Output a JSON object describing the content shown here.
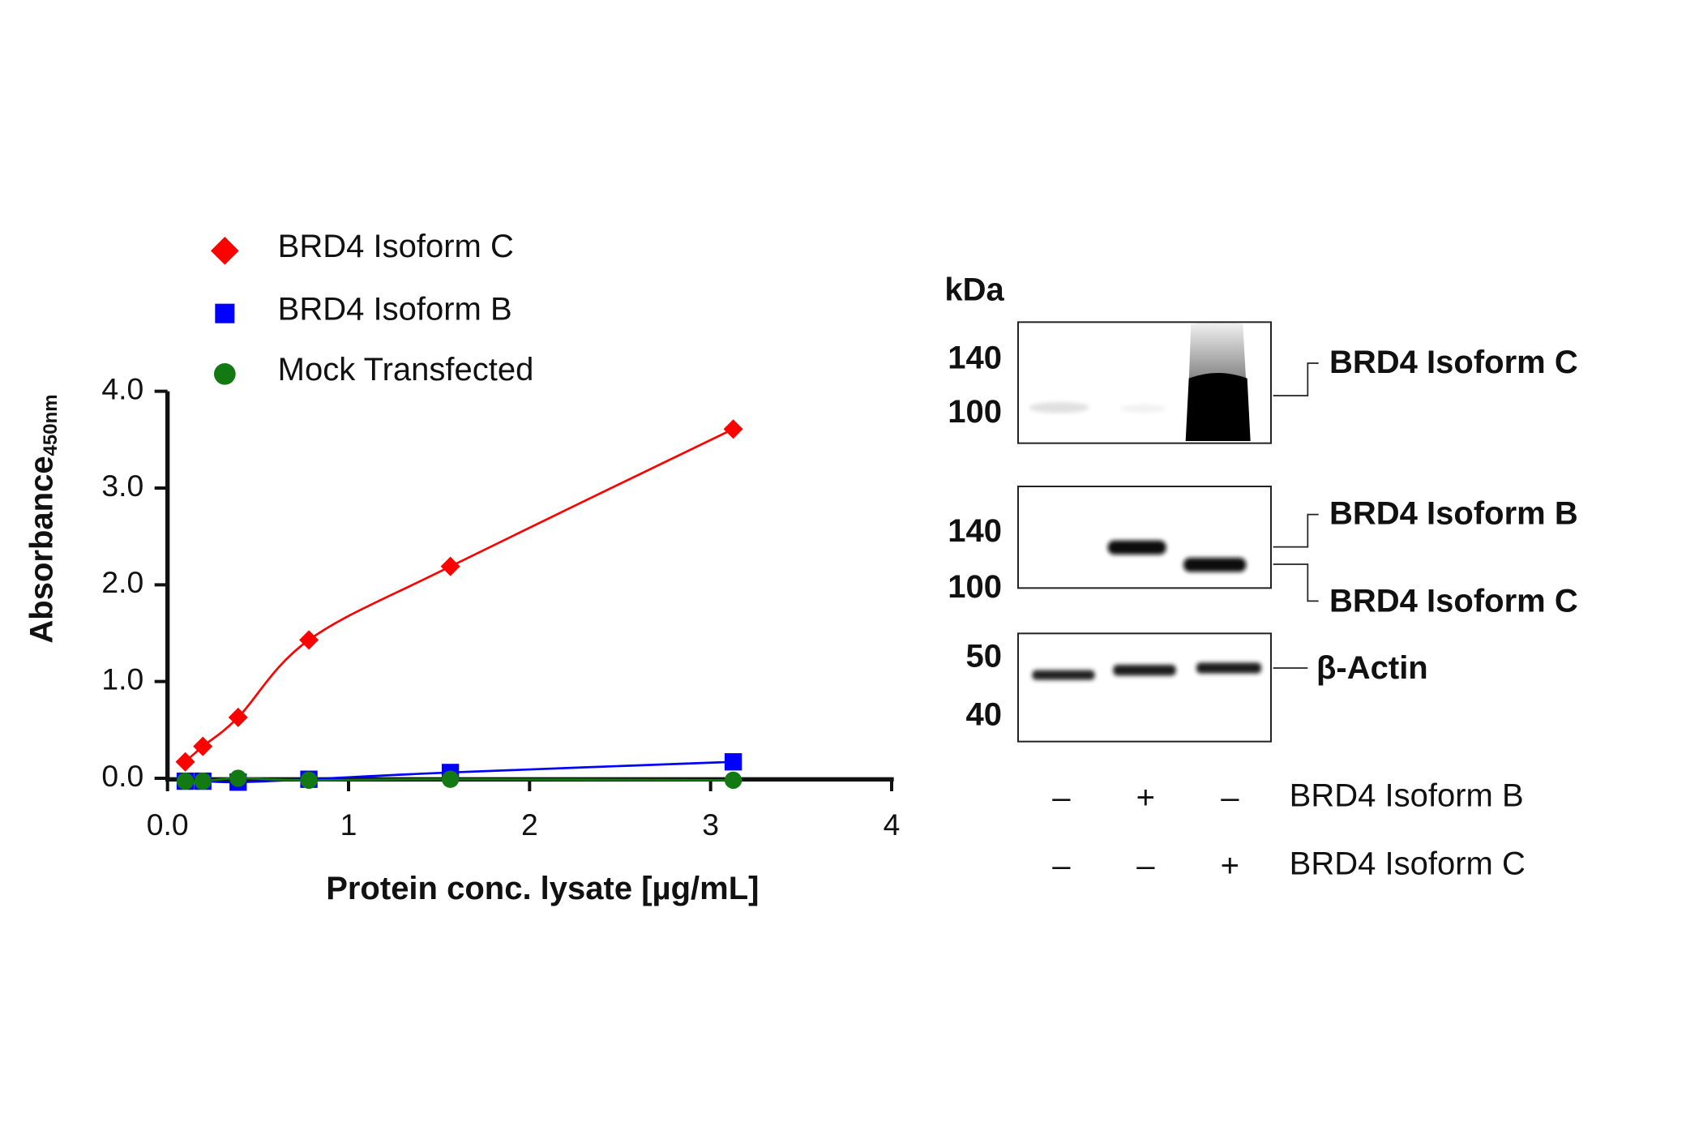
{
  "chart_data": {
    "type": "scatter",
    "xlabel": "Protein conc. lysate [µg/mL]",
    "ylabel": "Absorbance",
    "ylabel_subscript": "450nm",
    "x": [
      0.098,
      0.195,
      0.39,
      0.781,
      1.5625,
      3.125
    ],
    "xlim": [
      0,
      4
    ],
    "ylim": [
      0,
      4
    ],
    "xticks": [
      {
        "value": 0,
        "label": "0.0"
      },
      1,
      2,
      3,
      4
    ],
    "yticks": [
      {
        "value": 0,
        "label": "0.0"
      },
      {
        "value": 1,
        "label": "1.0"
      },
      {
        "value": 2,
        "label": "2.0"
      },
      {
        "value": 3,
        "label": "3.0"
      },
      {
        "value": 4,
        "label": "4.0"
      }
    ],
    "legend": "top-left",
    "series": [
      {
        "name": "BRD4 Isoform C",
        "color": "#ff0000",
        "marker": "diamond",
        "values": [
          0.17,
          0.33,
          0.63,
          1.43,
          2.19,
          3.61
        ]
      },
      {
        "name": "BRD4 Isoform B",
        "color": "#0000ff",
        "marker": "square",
        "values": [
          -0.03,
          -0.03,
          -0.04,
          -0.01,
          0.06,
          0.17
        ]
      },
      {
        "name": "Mock Transfected",
        "color": "#137a13",
        "marker": "circle",
        "values": [
          -0.03,
          -0.03,
          0.0,
          -0.02,
          -0.01,
          -0.02
        ]
      }
    ]
  },
  "blot": {
    "unit": "kDa",
    "panels": [
      {
        "markers": [
          "140",
          "100"
        ],
        "labels": [
          "BRD4 Isoform C"
        ]
      },
      {
        "markers": [
          "140",
          "100"
        ],
        "labels": [
          "BRD4 Isoform B",
          "BRD4 Isoform C"
        ]
      },
      {
        "markers": [
          "50",
          "40"
        ],
        "labels": [
          "β-Actin"
        ]
      }
    ],
    "conditions": [
      {
        "name": "BRD4 Isoform B",
        "lanes": [
          "–",
          "+",
          "–"
        ]
      },
      {
        "name": "BRD4 Isoform C",
        "lanes": [
          "–",
          "–",
          "+"
        ]
      }
    ]
  }
}
